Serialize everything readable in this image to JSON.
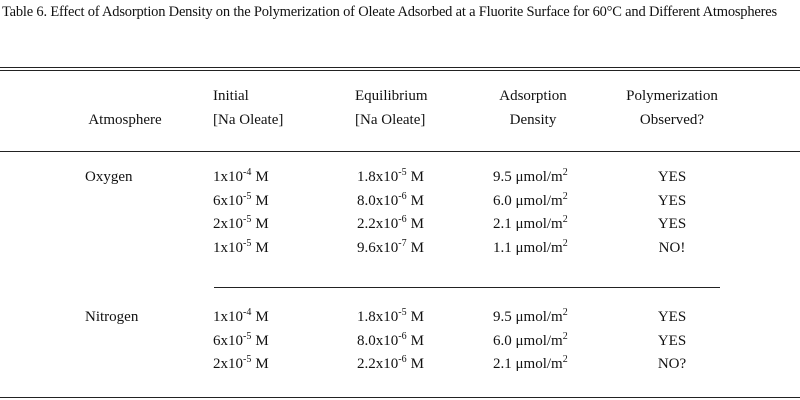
{
  "title": "Table 6.  Effect of Adsorption Density on the Polymerization of Oleate Adsorbed at a Fluorite Surface for 60°C and Different Atmospheres",
  "table": {
    "headers": [
      [
        "Atmosphere"
      ],
      [
        "Initial",
        "[Na Oleate]"
      ],
      [
        "Equilibrium",
        "[Na Oleate]"
      ],
      [
        "Adsorption",
        "Density"
      ],
      [
        "Polymerization",
        "Observed?"
      ]
    ],
    "groups": [
      {
        "atmosphere": "Oxygen",
        "rows": [
          [
            {
              "base": "1x10",
              "exp": "-4",
              "unit": "M"
            },
            {
              "base": "1.8x10",
              "exp": "-5",
              "unit": "M"
            },
            {
              "base": "9.5 μmol/m",
              "exp": "2"
            },
            "YES"
          ],
          [
            {
              "base": "6x10",
              "exp": "-5",
              "unit": "M"
            },
            {
              "base": "8.0x10",
              "exp": "-6",
              "unit": "M"
            },
            {
              "base": "6.0 μmol/m",
              "exp": "2"
            },
            "YES"
          ],
          [
            {
              "base": "2x10",
              "exp": "-5",
              "unit": "M"
            },
            {
              "base": "2.2x10",
              "exp": "-6",
              "unit": "M"
            },
            {
              "base": "2.1 μmol/m",
              "exp": "2"
            },
            "YES"
          ],
          [
            {
              "base": "1x10",
              "exp": "-5",
              "unit": "M"
            },
            {
              "base": "9.6x10",
              "exp": "-7",
              "unit": "M"
            },
            {
              "base": "1.1 μmol/m",
              "exp": "2"
            },
            "NO!"
          ]
        ]
      },
      {
        "atmosphere": "Nitrogen",
        "rows": [
          [
            {
              "base": "1x10",
              "exp": "-4",
              "unit": "M"
            },
            {
              "base": "1.8x10",
              "exp": "-5",
              "unit": "M"
            },
            {
              "base": "9.5 μmol/m",
              "exp": "2"
            },
            "YES"
          ],
          [
            {
              "base": "6x10",
              "exp": "-5",
              "unit": "M"
            },
            {
              "base": "8.0x10",
              "exp": "-6",
              "unit": "M"
            },
            {
              "base": "6.0 μmol/m",
              "exp": "2"
            },
            "YES"
          ],
          [
            {
              "base": "2x10",
              "exp": "-5",
              "unit": "M"
            },
            {
              "base": "2.2x10",
              "exp": "-6",
              "unit": "M"
            },
            {
              "base": "2.1 μmol/m",
              "exp": "2"
            },
            "NO?"
          ]
        ]
      }
    ]
  }
}
